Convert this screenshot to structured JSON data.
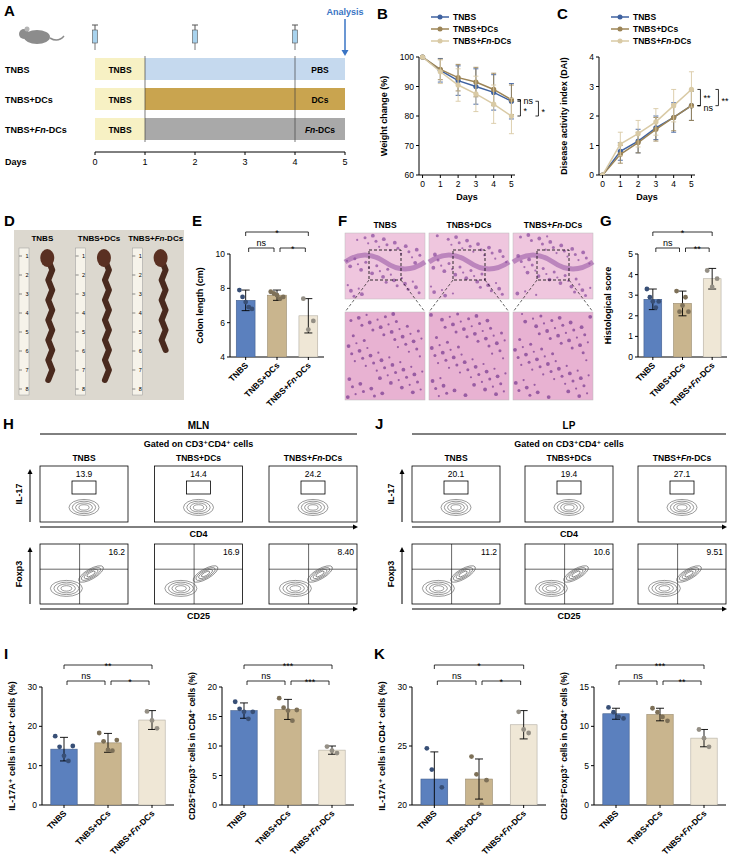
{
  "panel_a": {
    "letter": "A",
    "groups": [
      "TNBS",
      "TNBS+DCs",
      "TNBS+Fn-DCs"
    ],
    "induction": "TNBS",
    "induction_days": [
      0,
      1
    ],
    "treatments": [
      "PBS",
      "DCs",
      "Fn-DCs"
    ],
    "treatment_days": [
      4,
      5
    ],
    "injection_days": [
      0,
      2,
      4
    ],
    "days": [
      0,
      1,
      2,
      3,
      4,
      5
    ],
    "days_label": "Days",
    "analysis": "Analysis",
    "colors": [
      "#c5d9ee",
      "#c9a44f",
      "#a9a9a9"
    ],
    "induction_color": "#f7f1c4"
  },
  "panel_d": {
    "letter": "D",
    "labels": [
      "TNBS",
      "TNBS+DCs",
      "TNBS+Fn-DCs"
    ],
    "ruler": [
      1,
      2,
      3,
      4,
      5,
      6,
      7,
      8
    ]
  },
  "panel_f": {
    "letter": "F",
    "labels": [
      "TNBS",
      "TNBS+DCs",
      "TNBS+Fn-DCs"
    ]
  },
  "flow": [
    {
      "letter": "H",
      "title": "MLN",
      "gate_label": "Gated on CD3⁺CD4⁺ cells",
      "groups": [
        "TNBS",
        "TNBS+DCs",
        "TNBS+Fn-DCs"
      ],
      "top": {
        "x_label": "CD4",
        "y_label": "IL-17",
        "gates": [
          "13.9",
          "14.4",
          "24.2"
        ]
      },
      "bottom": {
        "x_label": "CD25",
        "y_label": "Foxp3",
        "gates": [
          "16.2",
          "16.9",
          "8.40"
        ]
      }
    },
    {
      "letter": "J",
      "title": "LP",
      "gate_label": "Gated on CD3⁺CD4⁺ cells",
      "groups": [
        "TNBS",
        "TNBS+DCs",
        "TNBS+Fn-DCs"
      ],
      "top": {
        "x_label": "CD4",
        "y_label": "IL-17",
        "gates": [
          "20.1",
          "19.4",
          "27.1"
        ]
      },
      "bottom": {
        "x_label": "CD25",
        "y_label": "Foxp3",
        "gates": [
          "11.2",
          "10.6",
          "9.51"
        ]
      }
    }
  ],
  "chart_data": [
    {
      "letter": "B",
      "type": "line",
      "x": [
        0,
        1,
        2,
        3,
        4,
        5
      ],
      "xlim": [
        -0.2,
        5.2
      ],
      "xticks": [
        0,
        1,
        2,
        3,
        4,
        5
      ],
      "ylim": [
        60,
        100
      ],
      "yticks": [
        60,
        70,
        80,
        90,
        100
      ],
      "x_label": "Days",
      "y_label": "Weight change (%)",
      "legend": "top",
      "marker": "circle",
      "series": [
        {
          "name": "TNBS",
          "color": "#3f62a0",
          "values": [
            100,
            95.5,
            92,
            90,
            88,
            85
          ],
          "errors": [
            0,
            4,
            5,
            6,
            6,
            6
          ]
        },
        {
          "name": "TNBS+DCs",
          "color": "#9c8456",
          "values": [
            100,
            95.8,
            93,
            91.5,
            89,
            85.5
          ],
          "errors": [
            0,
            3.5,
            4.5,
            5,
            5.5,
            5
          ]
        },
        {
          "name": "TNBS+Fn-DCs",
          "color": "#d9caa5",
          "values": [
            100,
            95,
            90.5,
            87.5,
            84,
            80
          ],
          "errors": [
            0,
            4,
            5.5,
            6,
            6.5,
            6
          ]
        }
      ],
      "significance": [
        {
          "pair": [
            0,
            1
          ],
          "label": "ns"
        },
        {
          "pair": [
            1,
            2
          ],
          "label": "*"
        },
        {
          "pair": [
            0,
            2
          ],
          "label": "*"
        }
      ]
    },
    {
      "letter": "C",
      "type": "line",
      "x": [
        0,
        1,
        2,
        3,
        4,
        5
      ],
      "xlim": [
        -0.2,
        5.2
      ],
      "xticks": [
        0,
        1,
        2,
        3,
        4,
        5
      ],
      "ylim": [
        0,
        4
      ],
      "yticks": [
        0,
        1,
        2,
        3,
        4
      ],
      "x_label": "Days",
      "y_label": "Disease activity index (DAI)",
      "legend": "top",
      "marker": "circle",
      "series": [
        {
          "name": "TNBS",
          "color": "#3f62a0",
          "values": [
            0,
            0.8,
            1.15,
            1.6,
            1.95,
            2.35
          ],
          "errors": [
            0,
            0.3,
            0.4,
            0.4,
            0.5,
            0.5
          ]
        },
        {
          "name": "TNBS+DCs",
          "color": "#9c8456",
          "values": [
            0,
            0.7,
            1.1,
            1.55,
            1.95,
            2.35
          ],
          "errors": [
            0,
            0.3,
            0.35,
            0.4,
            0.45,
            0.5
          ]
        },
        {
          "name": "TNBS+Fn-DCs",
          "color": "#d9caa5",
          "values": [
            0,
            1.05,
            1.4,
            1.8,
            2.35,
            2.9
          ],
          "errors": [
            0,
            0.4,
            0.45,
            0.45,
            0.55,
            0.6
          ]
        }
      ],
      "significance": [
        {
          "pair": [
            1,
            2
          ],
          "label": "**"
        },
        {
          "pair": [
            0,
            1
          ],
          "label": "ns"
        },
        {
          "pair": [
            0,
            2
          ],
          "label": "**"
        }
      ]
    },
    {
      "letter": "E",
      "type": "bar",
      "categories": [
        "TNBS",
        "TNBS+DCs",
        "TNBS+Fn-DCs"
      ],
      "values": [
        7.3,
        7.6,
        6.4
      ],
      "errors": [
        0.6,
        0.3,
        1.0
      ],
      "points": [
        [
          7.9,
          7.5,
          7.2,
          6.9,
          6.8
        ],
        [
          7.8,
          7.7,
          7.6,
          7.4,
          7.5
        ],
        [
          7.4,
          5.6,
          6.1
        ]
      ],
      "colors": [
        "#5b80be",
        "#c9b58e",
        "#efe7d6"
      ],
      "ylim": [
        4,
        10
      ],
      "yticks": [
        4,
        6,
        8,
        10
      ],
      "y_label": "Colon length (cm)",
      "significance": [
        {
          "pair": [
            0,
            1
          ],
          "label": "ns"
        },
        {
          "pair": [
            1,
            2
          ],
          "label": "*"
        },
        {
          "pair": [
            0,
            2
          ],
          "label": "*"
        }
      ]
    },
    {
      "letter": "G",
      "type": "bar",
      "categories": [
        "TNBS",
        "TNBS+DCs",
        "TNBS+Fn-DCs"
      ],
      "values": [
        2.8,
        2.6,
        3.8
      ],
      "errors": [
        0.5,
        0.6,
        0.5
      ],
      "points": [
        [
          3.3,
          2.9,
          2.7,
          2.4,
          2.7
        ],
        [
          3.2,
          2.2,
          2.5,
          2.9,
          2.2
        ],
        [
          4.2,
          3.4,
          3.8
        ]
      ],
      "colors": [
        "#5b80be",
        "#c9b58e",
        "#efe7d6"
      ],
      "ylim": [
        0,
        5
      ],
      "yticks": [
        0,
        1,
        2,
        3,
        4,
        5
      ],
      "y_label": "Histological score",
      "significance": [
        {
          "pair": [
            0,
            1
          ],
          "label": "ns"
        },
        {
          "pair": [
            1,
            2
          ],
          "label": "**"
        },
        {
          "pair": [
            0,
            2
          ],
          "label": "*"
        }
      ]
    },
    {
      "letter": "I",
      "type": "bar",
      "categories": [
        "TNBS",
        "TNBS+DCs",
        "TNBS+Fn-DCs"
      ],
      "values": [
        14.2,
        15.8,
        21.6
      ],
      "errors": [
        3.0,
        2.4,
        2.4
      ],
      "points": [
        [
          17.5,
          14.8,
          12.5,
          11.2,
          15.0
        ],
        [
          18.3,
          16.2,
          14.0,
          13.8,
          16.5
        ],
        [
          23.8,
          21.5,
          19.5
        ]
      ],
      "colors": [
        "#5b80be",
        "#c9b58e",
        "#efe7d6"
      ],
      "ylim": [
        0,
        30
      ],
      "yticks": [
        0,
        10,
        20,
        30
      ],
      "y_label": "IL-17A⁺ cells in CD4⁺ cells (%)",
      "significance": [
        {
          "pair": [
            0,
            1
          ],
          "label": "ns"
        },
        {
          "pair": [
            1,
            2
          ],
          "label": "*"
        },
        {
          "pair": [
            0,
            2
          ],
          "label": "**"
        }
      ]
    },
    {
      "type": "bar",
      "categories": [
        "TNBS",
        "TNBS+DCs",
        "TNBS+Fn-DCs"
      ],
      "values": [
        16.0,
        16.2,
        9.3
      ],
      "errors": [
        1.3,
        1.7,
        0.7
      ],
      "points": [
        [
          17.5,
          16.3,
          15.8,
          14.6,
          15.8
        ],
        [
          18.1,
          16.5,
          16.0,
          14.3,
          16.1
        ],
        [
          9.9,
          9.2,
          8.8
        ]
      ],
      "colors": [
        "#5b80be",
        "#c9b58e",
        "#efe7d6"
      ],
      "ylim": [
        0,
        20
      ],
      "yticks": [
        0,
        5,
        10,
        15,
        20
      ],
      "y_label": "CD25⁺Foxp3⁺ cells in CD4⁺ cells (%)",
      "significance": [
        {
          "pair": [
            0,
            1
          ],
          "label": "ns"
        },
        {
          "pair": [
            1,
            2
          ],
          "label": "***"
        },
        {
          "pair": [
            0,
            2
          ],
          "label": "***"
        }
      ]
    },
    {
      "letter": "K",
      "type": "bar",
      "categories": [
        "TNBS",
        "TNBS+DCs",
        "TNBS+Fn-DCs"
      ],
      "values": [
        22.2,
        22.2,
        26.8
      ],
      "errors": [
        2.3,
        1.7,
        1.2
      ],
      "points": [
        [
          24.8,
          23.0,
          19.5,
          21.5
        ],
        [
          24.1,
          22.6,
          20.0,
          22.1
        ],
        [
          27.9,
          26.4,
          26.1
        ]
      ],
      "colors": [
        "#5b80be",
        "#c9b58e",
        "#efe7d6"
      ],
      "ylim": [
        20,
        30
      ],
      "yticks": [
        20,
        25,
        30
      ],
      "y_label": "IL-17A⁺ cells in CD4⁺ cells (%)",
      "significance": [
        {
          "pair": [
            0,
            1
          ],
          "label": "ns"
        },
        {
          "pair": [
            1,
            2
          ],
          "label": "*"
        },
        {
          "pair": [
            0,
            2
          ],
          "label": "*"
        }
      ]
    },
    {
      "type": "bar",
      "categories": [
        "TNBS",
        "TNBS+DCs",
        "TNBS+Fn-DCs"
      ],
      "values": [
        11.6,
        11.5,
        8.5
      ],
      "errors": [
        0.7,
        0.8,
        1.1
      ],
      "points": [
        [
          12.4,
          11.8,
          11.2,
          11.0
        ],
        [
          12.3,
          11.8,
          11.2,
          10.7
        ],
        [
          9.6,
          8.5,
          7.4
        ]
      ],
      "colors": [
        "#5b80be",
        "#c9b58e",
        "#efe7d6"
      ],
      "ylim": [
        0,
        15
      ],
      "yticks": [
        0,
        5,
        10,
        15
      ],
      "y_label": "CD25⁺Foxp3⁺ cells in CD4⁺ cells (%)",
      "significance": [
        {
          "pair": [
            0,
            1
          ],
          "label": "ns"
        },
        {
          "pair": [
            1,
            2
          ],
          "label": "**"
        },
        {
          "pair": [
            0,
            2
          ],
          "label": "***"
        }
      ]
    }
  ]
}
